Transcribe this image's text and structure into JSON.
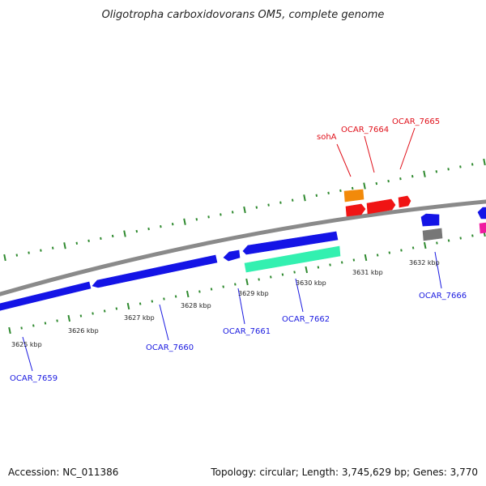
{
  "title": "Oligotropha carboxidovorans OM5, complete genome",
  "footer": {
    "accession": "Accession: NC_011386",
    "summary": "Topology: circular; Length: 3,745,629 bp; Genes: 3,770"
  },
  "colors": {
    "backbone": "#8a8a8a",
    "tick": "#2f8a2f",
    "label_top": "#e0101a",
    "label_bottom": "#1a1ae0",
    "gene_blue": "#1414e6",
    "gene_red": "#f01414",
    "gene_orange": "#f28a0a",
    "gene_green": "#33f0b0",
    "gene_gray": "#777777",
    "gene_pink": "#f01aa0"
  },
  "ticks": [
    {
      "label": "3625 kbp"
    },
    {
      "label": "3626 kbp"
    },
    {
      "label": "3627 kbp"
    },
    {
      "label": "3628 kbp"
    },
    {
      "label": "3629 kbp"
    },
    {
      "label": "3630 kbp"
    },
    {
      "label": "3631 kbp"
    },
    {
      "label": "3632 kbp"
    }
  ],
  "top_labels": [
    {
      "text": "sohA"
    },
    {
      "text": "OCAR_7664"
    },
    {
      "text": "OCAR_7665"
    }
  ],
  "bottom_labels": [
    {
      "text": "OCAR_7659"
    },
    {
      "text": "OCAR_7660"
    },
    {
      "text": "OCAR_7661"
    },
    {
      "text": "OCAR_7662"
    },
    {
      "text": "OCAR_7666"
    }
  ],
  "genes": [
    {
      "color_key": "gene_blue"
    },
    {
      "color_key": "gene_blue"
    },
    {
      "color_key": "gene_blue"
    },
    {
      "color_key": "gene_blue"
    },
    {
      "color_key": "gene_green"
    },
    {
      "color_key": "gene_orange"
    },
    {
      "color_key": "gene_red"
    },
    {
      "color_key": "gene_red"
    },
    {
      "color_key": "gene_red"
    },
    {
      "color_key": "gene_blue"
    },
    {
      "color_key": "gene_gray"
    },
    {
      "color_key": "gene_blue"
    },
    {
      "color_key": "gene_pink"
    }
  ]
}
